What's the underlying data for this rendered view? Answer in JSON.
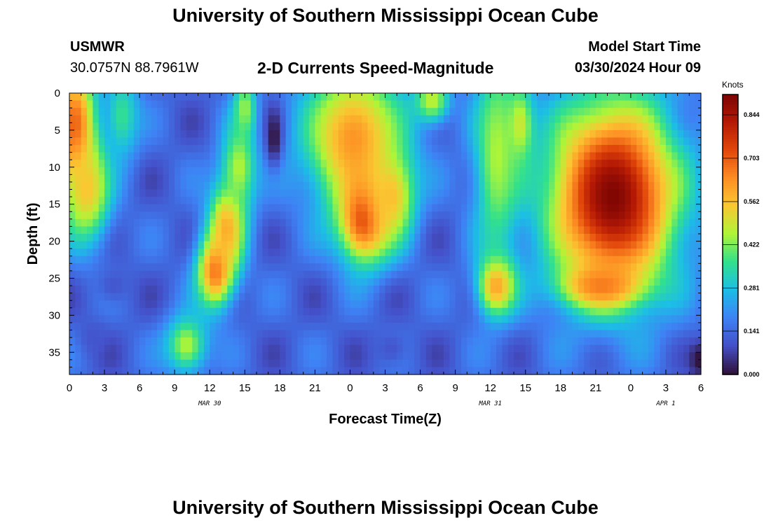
{
  "page": {
    "title": "University of Southern Mississippi Ocean Cube",
    "footer_title": "University of Southern Mississippi Ocean Cube",
    "station_id": "USMWR",
    "coordinates": "30.0757N  88.7961W",
    "subtitle": "2-D Currents Speed-Magnitude",
    "model_start_label": "Model Start Time",
    "model_start_value": "03/30/2024 Hour 09"
  },
  "chart_data": {
    "type": "heatmap",
    "title": "2-D Currents Speed-Magnitude",
    "xlabel": "Forecast Time(Z)",
    "ylabel": "Depth (ft)",
    "x_tick_labels": [
      "0",
      "3",
      "6",
      "9",
      "12",
      "15",
      "18",
      "21",
      "0",
      "3",
      "6",
      "9",
      "12",
      "15",
      "18",
      "21",
      "0",
      "3",
      "6"
    ],
    "x_range_hours": [
      0,
      54
    ],
    "date_labels": [
      {
        "text": "MAR 30",
        "hour": 12
      },
      {
        "text": "MAR 31",
        "hour": 36
      },
      {
        "text": "APR 1",
        "hour": 51
      }
    ],
    "y_ticks": [
      0,
      5,
      10,
      15,
      20,
      25,
      30,
      35
    ],
    "ylim": [
      0,
      38
    ],
    "colorbar": {
      "title": "Knots",
      "min": 0.0,
      "max": 0.91,
      "tick_values": [
        0.0,
        0.141,
        0.281,
        0.422,
        0.562,
        0.703,
        0.844
      ],
      "tick_labels": [
        "0.000",
        "0.141",
        "0.281",
        "0.422",
        "0.562",
        "0.703",
        "0.844"
      ]
    },
    "features": [
      {
        "hour": 0.5,
        "depth": 5,
        "speed": 0.72,
        "hw": 1.8,
        "dw": 9
      },
      {
        "hour": 1.5,
        "depth": 13,
        "speed": 0.55,
        "hw": 2.0,
        "dw": 7
      },
      {
        "hour": 4.5,
        "depth": 3,
        "speed": 0.36,
        "hw": 1.5,
        "dw": 6
      },
      {
        "hour": 10,
        "depth": 34,
        "speed": 0.46,
        "hw": 1.8,
        "dw": 4
      },
      {
        "hour": 12.5,
        "depth": 24,
        "speed": 0.68,
        "hw": 1.6,
        "dw": 5
      },
      {
        "hour": 13.5,
        "depth": 18,
        "speed": 0.6,
        "hw": 1.6,
        "dw": 6
      },
      {
        "hour": 14.5,
        "depth": 10,
        "speed": 0.46,
        "hw": 1.5,
        "dw": 6
      },
      {
        "hour": 15,
        "depth": 2,
        "speed": 0.44,
        "hw": 1.0,
        "dw": 4
      },
      {
        "hour": 24.3,
        "depth": 6,
        "speed": 0.62,
        "hw": 4.3,
        "dw": 10
      },
      {
        "hour": 25.2,
        "depth": 17,
        "speed": 0.74,
        "hw": 2.2,
        "dw": 6
      },
      {
        "hour": 27.5,
        "depth": 14,
        "speed": 0.56,
        "hw": 2.0,
        "dw": 6
      },
      {
        "hour": 31,
        "depth": 1,
        "speed": 0.48,
        "hw": 1.5,
        "dw": 3
      },
      {
        "hour": 36.5,
        "depth": 26,
        "speed": 0.64,
        "hw": 1.6,
        "dw": 4
      },
      {
        "hour": 36.5,
        "depth": 8,
        "speed": 0.44,
        "hw": 2.0,
        "dw": 15
      },
      {
        "hour": 38.5,
        "depth": 4,
        "speed": 0.46,
        "hw": 1.2,
        "dw": 5
      },
      {
        "hour": 46.5,
        "depth": 14,
        "speed": 0.9,
        "hw": 5.5,
        "dw": 13
      },
      {
        "hour": 45.5,
        "depth": 26,
        "speed": 0.66,
        "hw": 3.5,
        "dw": 3
      }
    ],
    "lows": [
      {
        "hour": 17.5,
        "depth": 6,
        "speed": 0.0,
        "hw": 0.7,
        "dw": 4
      },
      {
        "hour": 3.8,
        "depth": 26,
        "speed": 0.1,
        "hw": 1.5,
        "dw": 2.5
      },
      {
        "hour": 2.0,
        "depth": 33,
        "speed": 0.1,
        "hw": 1.2,
        "dw": 2.5
      },
      {
        "hour": 27.5,
        "depth": 34.5,
        "speed": 0.1,
        "hw": 1.5,
        "dw": 2.5
      },
      {
        "hour": 53.8,
        "depth": 36,
        "speed": 0.0,
        "hw": 0.8,
        "dw": 2.5
      }
    ]
  }
}
